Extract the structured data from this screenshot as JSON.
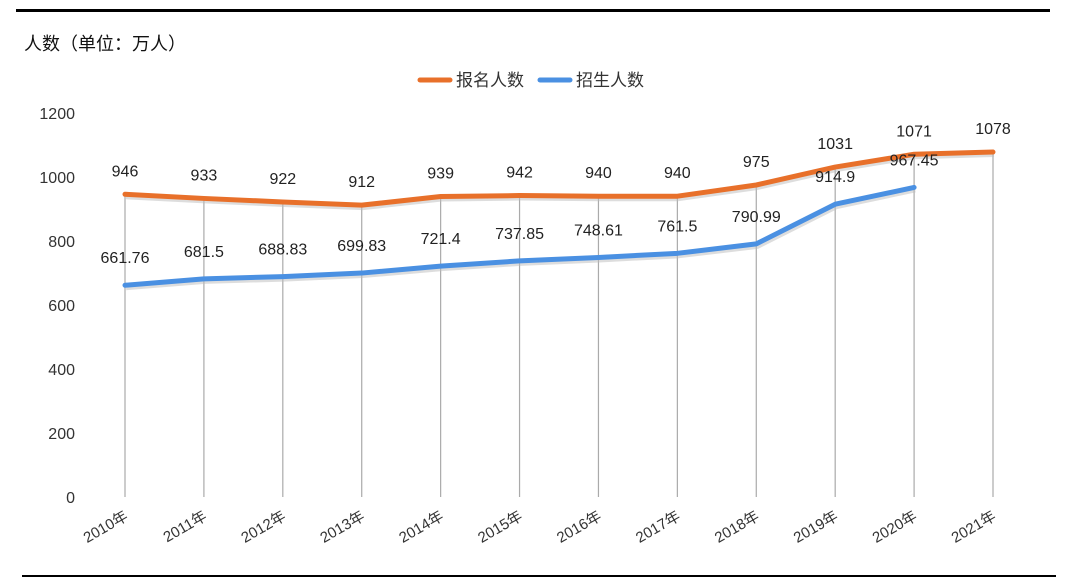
{
  "chart_data": {
    "type": "line",
    "title": "人数（单位：万人）",
    "categories": [
      "2010年",
      "2011年",
      "2012年",
      "2013年",
      "2014年",
      "2015年",
      "2016年",
      "2017年",
      "2018年",
      "2019年",
      "2020年",
      "2021年"
    ],
    "series": [
      {
        "name": "报名人数",
        "color": "#E8702A",
        "values": [
          946,
          933,
          922,
          912,
          939,
          942,
          940,
          940,
          975,
          1031,
          1071,
          1078
        ]
      },
      {
        "name": "招生人数",
        "color": "#4A90E2",
        "values": [
          661.76,
          681.5,
          688.83,
          699.83,
          721.4,
          737.85,
          748.61,
          761.5,
          790.99,
          914.9,
          967.45,
          null
        ]
      }
    ],
    "yticks": [
      0,
      200,
      400,
      600,
      800,
      1000,
      1200
    ],
    "ylim": [
      0,
      1200
    ],
    "grid": "vertical lines at categories",
    "legend": "top-center"
  }
}
